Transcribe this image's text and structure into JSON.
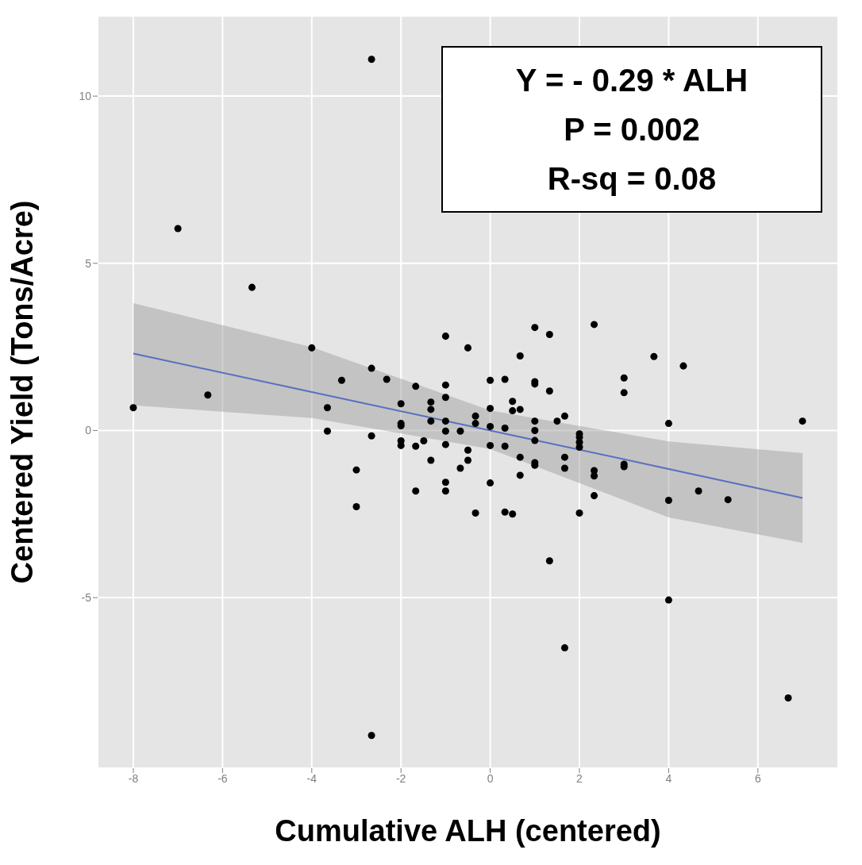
{
  "chart_data": {
    "type": "scatter",
    "xlabel": "Cumulative ALH (centered)",
    "ylabel": "Centered Yield (Tons/Acre)",
    "annotations": [
      "Y = - 0.29 * ALH",
      "P = 0.002",
      "R-sq = 0.08"
    ],
    "xlim": [
      -8.8,
      7.8
    ],
    "ylim": [
      -10.1,
      12.4
    ],
    "xticks": [
      -8,
      -6,
      -4,
      -2,
      0,
      2,
      4,
      6
    ],
    "yticks": [
      -5,
      0,
      5,
      10
    ],
    "grid": true,
    "series": [
      {
        "marker": "circle",
        "color": "#000000",
        "x": [
          -8,
          -7,
          -2.66,
          -5.34,
          -6.33,
          -4,
          -3.65,
          -3.65,
          -3.33,
          -3,
          -3,
          -2.66,
          -2.66,
          -2.32,
          -2,
          -2,
          -2,
          -2,
          -2,
          -1.67,
          -1.67,
          -1.67,
          -1.49,
          -1.33,
          -1.33,
          -1.33,
          -1.33,
          -1,
          -1,
          -1,
          -1,
          -1,
          -1,
          -1,
          -1,
          -0.67,
          -0.67,
          -0.5,
          -0.5,
          -0.5,
          -0.33,
          -0.33,
          -0.33,
          0,
          0,
          0,
          0,
          0,
          0.33,
          0.33,
          0.33,
          0.33,
          0.5,
          0.5,
          0.5,
          0.67,
          0.67,
          0.67,
          0.67,
          1,
          1,
          1,
          1,
          1,
          1,
          1,
          1,
          1.33,
          1.33,
          1.33,
          1.5,
          1.67,
          1.67,
          1.67,
          2,
          2,
          2,
          2,
          2,
          2.33,
          2.33,
          2.33,
          2.33,
          3,
          3,
          3,
          3,
          3.67,
          4,
          4,
          4.33,
          4.67,
          5.33,
          7,
          1.67,
          4,
          6.68,
          -2.66
        ],
        "values": [
          0.68,
          6.04,
          11.1,
          4.28,
          1.06,
          2.47,
          0.68,
          -0.02,
          1.5,
          -1.18,
          -2.28,
          1.86,
          -0.16,
          1.53,
          0.8,
          0.21,
          0.14,
          -0.31,
          -0.45,
          1.32,
          -0.47,
          -1.81,
          -0.31,
          0.85,
          0.63,
          0.28,
          -0.89,
          2.82,
          1.36,
          0.99,
          0.28,
          -0.02,
          -0.42,
          -1.55,
          -1.81,
          -0.02,
          -1.13,
          2.47,
          -0.59,
          -0.89,
          0.43,
          0.21,
          -2.47,
          1.5,
          0.66,
          0.12,
          -0.45,
          -1.57,
          1.53,
          0.07,
          -0.47,
          -2.44,
          0.87,
          0.59,
          -2.5,
          2.23,
          0.63,
          -0.8,
          -1.34,
          3.08,
          1.46,
          1.39,
          0.28,
          0,
          -0.3,
          -0.96,
          -1.04,
          2.87,
          1.18,
          -3.9,
          0.28,
          0.43,
          -0.8,
          -1.13,
          -0.1,
          -0.2,
          -0.35,
          -0.5,
          -2.47,
          3.17,
          -1.2,
          -1.36,
          -1.95,
          1.57,
          1.13,
          -1.01,
          -1.08,
          2.21,
          0.21,
          -2.09,
          1.93,
          -1.81,
          -2.07,
          0.28,
          -6.5,
          -5.07,
          -8,
          -9.12
        ]
      },
      {
        "type": "line",
        "color": "#5a6fc0",
        "x": [
          -8,
          -4,
          0,
          4,
          7
        ],
        "values": [
          2.3,
          1.15,
          0,
          -1.15,
          -2.02
        ],
        "lower": [
          0.75,
          0.37,
          -0.55,
          -2.6,
          -3.36
        ],
        "upper": [
          3.81,
          2.49,
          0.6,
          -0.33,
          -0.68
        ]
      }
    ]
  }
}
